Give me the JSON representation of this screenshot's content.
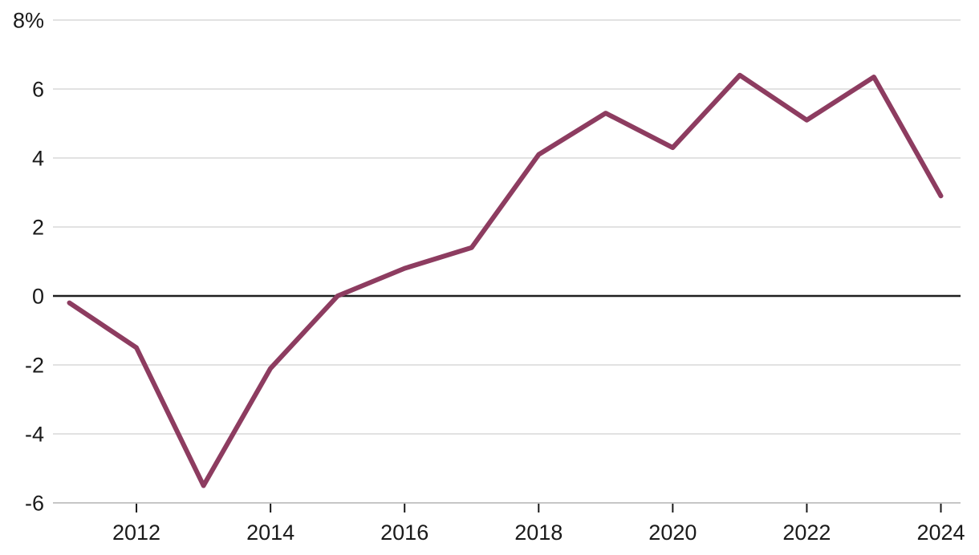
{
  "chart": {
    "colors": {
      "line": "#8d3c60",
      "grid": "#d9d9d9",
      "baseline": "#c6c6c6",
      "zero_line": "#1f1f1f",
      "tick": "#1a1a1a",
      "label": "#1a1a1a",
      "background": "#ffffff"
    }
  },
  "chart_data": {
    "type": "line",
    "title": "",
    "xlabel": "",
    "ylabel": "",
    "unit": "%",
    "x": [
      2011,
      2012,
      2013,
      2014,
      2015,
      2016,
      2017,
      2018,
      2019,
      2020,
      2021,
      2022,
      2023,
      2024
    ],
    "values": [
      -0.2,
      -1.5,
      -5.5,
      -2.1,
      0.0,
      0.8,
      1.4,
      4.1,
      5.3,
      4.3,
      6.4,
      5.1,
      6.35,
      2.9
    ],
    "ylim": [
      -6,
      8
    ],
    "y_tick_step": 2,
    "y_ticks": [
      {
        "value": 8,
        "label": "8%"
      },
      {
        "value": 6,
        "label": "6"
      },
      {
        "value": 4,
        "label": "4"
      },
      {
        "value": 2,
        "label": "2"
      },
      {
        "value": 0,
        "label": "0"
      },
      {
        "value": -2,
        "label": "-2"
      },
      {
        "value": -4,
        "label": "-4"
      },
      {
        "value": -6,
        "label": "-6"
      }
    ],
    "x_ticks": [
      {
        "value": 2012,
        "label": "2012"
      },
      {
        "value": 2014,
        "label": "2014"
      },
      {
        "value": 2016,
        "label": "2016"
      },
      {
        "value": 2018,
        "label": "2018"
      },
      {
        "value": 2020,
        "label": "2020"
      },
      {
        "value": 2022,
        "label": "2022"
      },
      {
        "value": 2024,
        "label": "2024"
      }
    ],
    "grid": "horizontal",
    "legend": "none",
    "zero_line": true
  }
}
